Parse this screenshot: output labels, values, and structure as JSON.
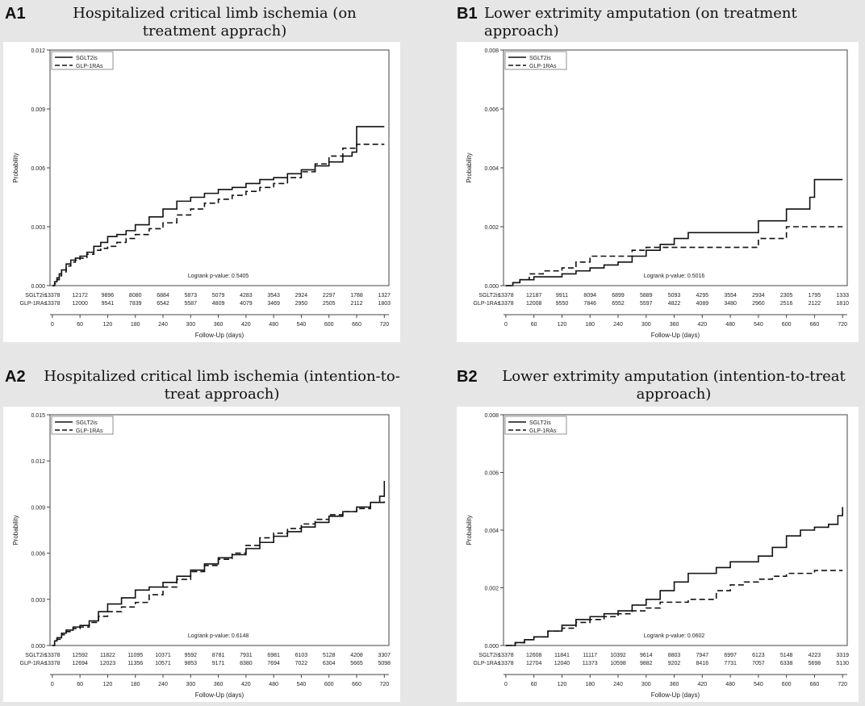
{
  "figure": {
    "panels": [
      {
        "id": "A1",
        "letter": "A1",
        "title": "Hospitalized critical limb ischemia (on treatment apprach)"
      },
      {
        "id": "B1",
        "letter": "B1",
        "title": "Lower extrimity amputation (on treatment approach)"
      },
      {
        "id": "A2",
        "letter": "A2",
        "title": "Hospitalized critical limb ischemia (intention-to-treat approach)"
      },
      {
        "id": "B2",
        "letter": "B2",
        "title": "Lower extrimity amputation (intention-to-treat approach)"
      }
    ]
  },
  "colors": {
    "background": "#e6e6e6",
    "plot": "#ffffff",
    "line": "#111111"
  },
  "chart_data": [
    {
      "panel": "A1",
      "type": "line",
      "xlabel": "Follow-Up (days)",
      "ylabel": "Probability",
      "x_ticks": [
        0,
        60,
        120,
        180,
        240,
        300,
        360,
        420,
        480,
        540,
        600,
        660,
        720
      ],
      "xlim": [
        -5,
        730
      ],
      "y_ticks": [
        "0.000",
        "0.003",
        "0.006",
        "0.009",
        "0.012"
      ],
      "ylim": [
        0,
        0.012
      ],
      "legend": {
        "position": "top-left",
        "entries": [
          "SGLT2is",
          "GLP-1RAs"
        ]
      },
      "annotation": "Logrank p-value: 0.5405",
      "series": [
        {
          "name": "SGLT2is",
          "style": "solid",
          "x": [
            0,
            5,
            10,
            15,
            20,
            30,
            40,
            50,
            60,
            75,
            90,
            105,
            120,
            140,
            160,
            180,
            210,
            240,
            270,
            300,
            330,
            360,
            390,
            420,
            450,
            480,
            510,
            540,
            570,
            600,
            630,
            650,
            660,
            720
          ],
          "y": [
            0,
            0.0002,
            0.0004,
            0.0006,
            0.0008,
            0.0011,
            0.0013,
            0.0014,
            0.0015,
            0.0017,
            0.002,
            0.0022,
            0.0025,
            0.0026,
            0.0028,
            0.0031,
            0.0035,
            0.0039,
            0.0043,
            0.0045,
            0.0047,
            0.0049,
            0.005,
            0.0052,
            0.0054,
            0.0055,
            0.0057,
            0.0059,
            0.0061,
            0.0063,
            0.0066,
            0.0068,
            0.0081,
            0.0081
          ]
        },
        {
          "name": "GLP-1RAs",
          "style": "dashed",
          "x": [
            0,
            5,
            10,
            15,
            20,
            30,
            40,
            50,
            60,
            75,
            90,
            105,
            120,
            140,
            160,
            180,
            210,
            240,
            270,
            300,
            330,
            360,
            390,
            420,
            450,
            480,
            510,
            540,
            570,
            600,
            630,
            660,
            720
          ],
          "y": [
            0,
            0.0001,
            0.0003,
            0.0005,
            0.0007,
            0.001,
            0.0012,
            0.0013,
            0.0014,
            0.0016,
            0.0018,
            0.0019,
            0.002,
            0.0022,
            0.0024,
            0.0026,
            0.0029,
            0.0032,
            0.0036,
            0.0039,
            0.0042,
            0.0044,
            0.0046,
            0.0048,
            0.005,
            0.0052,
            0.0055,
            0.0058,
            0.0062,
            0.0066,
            0.007,
            0.0072,
            0.0072
          ]
        }
      ],
      "risk_table": {
        "rows": [
          {
            "label": "SGLT2is",
            "values": [
              "13378",
              "12172",
              "9896",
              "8080",
              "6884",
              "5873",
              "5079",
              "4283",
              "3543",
              "2924",
              "2297",
              "1788",
              "1327"
            ]
          },
          {
            "label": "GLP-1RAs",
            "values": [
              "13378",
              "12000",
              "9541",
              "7839",
              "6542",
              "5587",
              "4809",
              "4079",
              "3469",
              "2950",
              "2505",
              "2112",
              "1803"
            ]
          }
        ]
      }
    },
    {
      "panel": "B1",
      "type": "line",
      "xlabel": "Follow-Up (days)",
      "ylabel": "Probability",
      "x_ticks": [
        0,
        60,
        120,
        180,
        240,
        300,
        360,
        420,
        480,
        540,
        600,
        660,
        720
      ],
      "xlim": [
        -5,
        730
      ],
      "y_ticks": [
        "0.000",
        "0.002",
        "0.004",
        "0.006",
        "0.008"
      ],
      "ylim": [
        0,
        0.008
      ],
      "legend": {
        "position": "top-left",
        "entries": [
          "SGLT2is",
          "GLP-1RAs"
        ]
      },
      "annotation": "Logrank p-value: 0.5016",
      "series": [
        {
          "name": "SGLT2is",
          "style": "solid",
          "x": [
            0,
            15,
            30,
            60,
            90,
            120,
            150,
            180,
            210,
            240,
            270,
            300,
            330,
            360,
            390,
            420,
            450,
            480,
            510,
            540,
            570,
            600,
            630,
            650,
            660,
            720
          ],
          "y": [
            0,
            0.0001,
            0.0002,
            0.0003,
            0.0003,
            0.0004,
            0.0005,
            0.0006,
            0.0007,
            0.0008,
            0.001,
            0.0012,
            0.0014,
            0.0016,
            0.0018,
            0.0018,
            0.0018,
            0.0018,
            0.0018,
            0.0022,
            0.0022,
            0.0026,
            0.0026,
            0.003,
            0.0036,
            0.0036
          ]
        },
        {
          "name": "GLP-1RAs",
          "style": "dashed",
          "x": [
            0,
            15,
            30,
            50,
            80,
            120,
            150,
            180,
            210,
            240,
            270,
            300,
            330,
            360,
            420,
            480,
            540,
            590,
            600,
            720
          ],
          "y": [
            0,
            0.0001,
            0.0002,
            0.0004,
            0.0005,
            0.0006,
            0.0008,
            0.001,
            0.001,
            0.001,
            0.0012,
            0.0013,
            0.0013,
            0.0013,
            0.0013,
            0.0013,
            0.0016,
            0.0016,
            0.002,
            0.002
          ]
        }
      ],
      "risk_table": {
        "rows": [
          {
            "label": "SGLT2is",
            "values": [
              "13378",
              "12187",
              "9911",
              "8094",
              "6899",
              "5889",
              "5093",
              "4295",
              "3554",
              "2934",
              "2305",
              "1795",
              "1333"
            ]
          },
          {
            "label": "GLP-1RAs",
            "values": [
              "13378",
              "12008",
              "9550",
              "7846",
              "6552",
              "5597",
              "4822",
              "4089",
              "3480",
              "2960",
              "2516",
              "2122",
              "1810"
            ]
          }
        ]
      }
    },
    {
      "panel": "A2",
      "type": "line",
      "xlabel": "Follow-Up (days)",
      "ylabel": "Probability",
      "x_ticks": [
        0,
        60,
        120,
        180,
        240,
        300,
        360,
        420,
        480,
        540,
        600,
        660,
        720
      ],
      "xlim": [
        -5,
        730
      ],
      "y_ticks": [
        "0.000",
        "0.003",
        "0.006",
        "0.009",
        "0.012",
        "0.015"
      ],
      "ylim": [
        0,
        0.015
      ],
      "legend": {
        "position": "top-left",
        "entries": [
          "SGLT2is",
          "GLP-1RAs"
        ]
      },
      "annotation": "Logrank p-value: 0.6148",
      "series": [
        {
          "name": "SGLT2is",
          "style": "solid",
          "x": [
            0,
            5,
            10,
            20,
            30,
            45,
            60,
            80,
            100,
            120,
            150,
            180,
            210,
            240,
            270,
            300,
            330,
            360,
            390,
            420,
            450,
            480,
            510,
            540,
            570,
            600,
            630,
            660,
            690,
            710,
            720
          ],
          "y": [
            0,
            0.0003,
            0.0005,
            0.0008,
            0.001,
            0.0012,
            0.0013,
            0.0016,
            0.0022,
            0.0027,
            0.0031,
            0.0036,
            0.0038,
            0.0041,
            0.0045,
            0.0049,
            0.0053,
            0.0057,
            0.0059,
            0.0063,
            0.0067,
            0.0071,
            0.0074,
            0.0077,
            0.008,
            0.0084,
            0.0087,
            0.009,
            0.0093,
            0.0097,
            0.0107
          ]
        },
        {
          "name": "GLP-1RAs",
          "style": "dashed",
          "x": [
            0,
            5,
            10,
            20,
            30,
            45,
            60,
            80,
            100,
            120,
            150,
            180,
            210,
            240,
            270,
            300,
            330,
            360,
            390,
            420,
            450,
            480,
            510,
            540,
            570,
            600,
            630,
            660,
            690,
            720
          ],
          "y": [
            0,
            0.0002,
            0.0004,
            0.0007,
            0.0009,
            0.0011,
            0.0012,
            0.0015,
            0.0019,
            0.0022,
            0.0025,
            0.0028,
            0.0033,
            0.0038,
            0.0043,
            0.0048,
            0.0052,
            0.0056,
            0.006,
            0.0065,
            0.007,
            0.0073,
            0.0076,
            0.0079,
            0.0082,
            0.0085,
            0.0087,
            0.0089,
            0.0093,
            0.0095
          ]
        }
      ],
      "risk_table": {
        "rows": [
          {
            "label": "SGLT2is",
            "values": [
              "13378",
              "12592",
              "11822",
              "11095",
              "10371",
              "9592",
              "8781",
              "7931",
              "6981",
              "6103",
              "5128",
              "4208",
              "3307"
            ]
          },
          {
            "label": "GLP-1RAs",
            "values": [
              "13378",
              "12694",
              "12023",
              "11356",
              "10571",
              "9853",
              "9171",
              "8380",
              "7694",
              "7022",
              "6304",
              "5665",
              "5098"
            ]
          }
        ]
      }
    },
    {
      "panel": "B2",
      "type": "line",
      "xlabel": "Follow-Up (days)",
      "ylabel": "Probability",
      "x_ticks": [
        0,
        60,
        120,
        180,
        240,
        300,
        360,
        420,
        480,
        540,
        600,
        660,
        720
      ],
      "xlim": [
        -5,
        730
      ],
      "y_ticks": [
        "0.000",
        "0.002",
        "0.004",
        "0.006",
        "0.008"
      ],
      "ylim": [
        0,
        0.008
      ],
      "legend": {
        "position": "top-left",
        "entries": [
          "SGLT2is",
          "GLP-1RAs"
        ]
      },
      "annotation": "Logrank p-value: 0.0602",
      "series": [
        {
          "name": "SGLT2is",
          "style": "solid",
          "x": [
            0,
            20,
            40,
            60,
            90,
            120,
            150,
            180,
            210,
            240,
            270,
            300,
            330,
            360,
            390,
            420,
            450,
            480,
            510,
            540,
            570,
            600,
            630,
            660,
            690,
            710,
            720
          ],
          "y": [
            0,
            0.0001,
            0.0002,
            0.0003,
            0.0005,
            0.0007,
            0.0009,
            0.001,
            0.0011,
            0.0012,
            0.0014,
            0.0016,
            0.0019,
            0.0022,
            0.0025,
            0.0025,
            0.0027,
            0.0029,
            0.0029,
            0.0031,
            0.0034,
            0.0038,
            0.004,
            0.0041,
            0.0042,
            0.0045,
            0.0048
          ]
        },
        {
          "name": "GLP-1RAs",
          "style": "dashed",
          "x": [
            0,
            20,
            40,
            60,
            90,
            120,
            150,
            180,
            210,
            240,
            270,
            300,
            330,
            360,
            390,
            420,
            450,
            480,
            510,
            540,
            570,
            600,
            630,
            660,
            720
          ],
          "y": [
            0,
            0.0001,
            0.0002,
            0.0003,
            0.0005,
            0.0006,
            0.0008,
            0.0009,
            0.001,
            0.0011,
            0.0012,
            0.0013,
            0.0015,
            0.0015,
            0.0016,
            0.0016,
            0.0019,
            0.0021,
            0.0022,
            0.0023,
            0.0024,
            0.0025,
            0.0025,
            0.0026,
            0.0026
          ]
        }
      ],
      "risk_table": {
        "rows": [
          {
            "label": "SGLT2is",
            "values": [
              "13378",
              "12608",
              "11841",
              "11117",
              "10392",
              "9614",
              "8803",
              "7947",
              "6997",
              "6123",
              "5148",
              "4223",
              "3319"
            ]
          },
          {
            "label": "GLP-1RAs",
            "values": [
              "13378",
              "12704",
              "12040",
              "11373",
              "10598",
              "9882",
              "9202",
              "8416",
              "7731",
              "7057",
              "6338",
              "5698",
              "5130"
            ]
          }
        ]
      }
    }
  ]
}
